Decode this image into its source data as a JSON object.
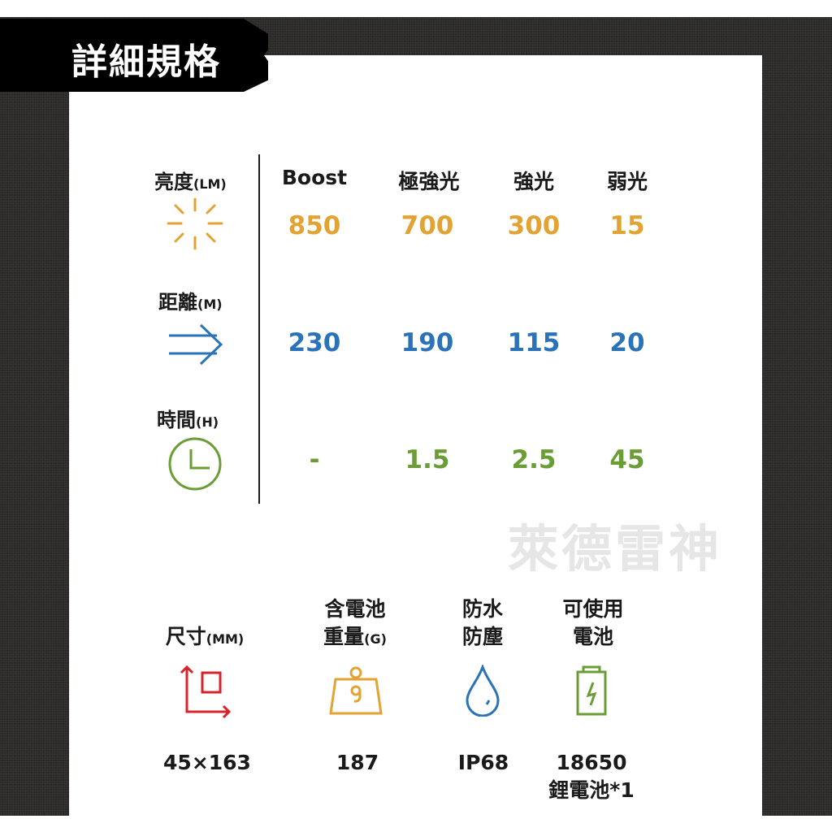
{
  "title": "詳細規格",
  "watermark": "萊德雷神",
  "columns": [
    "Boost",
    "極強光",
    "強光",
    "弱光"
  ],
  "rows": [
    {
      "label": "亮度",
      "unit": "(LM)",
      "icon": "sun-icon",
      "color": "#e3a333",
      "values": [
        "850",
        "700",
        "300",
        "15"
      ]
    },
    {
      "label": "距離",
      "unit": "(M)",
      "icon": "double-arrow-icon",
      "color": "#2a73b8",
      "values": [
        "230",
        "190",
        "115",
        "20"
      ]
    },
    {
      "label": "時間",
      "unit": "(H)",
      "icon": "clock-icon",
      "color": "#6a9d35",
      "values": [
        "-",
        "1.5",
        "2.5",
        "45"
      ]
    }
  ],
  "specs": [
    {
      "label1": "",
      "label2": "尺寸",
      "unit": "(MM)",
      "icon": "dimensions-icon",
      "color": "#d7232a",
      "value1": "45×163",
      "value2": ""
    },
    {
      "label1": "含電池",
      "label2": "重量",
      "unit": "(G)",
      "icon": "weight-icon",
      "color": "#e3a333",
      "value1": "187",
      "value2": ""
    },
    {
      "label1": "防水",
      "label2": "防塵",
      "unit": "",
      "icon": "water-drop-icon",
      "color": "#2a73b8",
      "value1": "IP68",
      "value2": ""
    },
    {
      "label1": "可使用",
      "label2": "電池",
      "unit": "",
      "icon": "battery-icon",
      "color": "#6a9d35",
      "value1": "18650",
      "value2": "鋰電池*1"
    }
  ]
}
